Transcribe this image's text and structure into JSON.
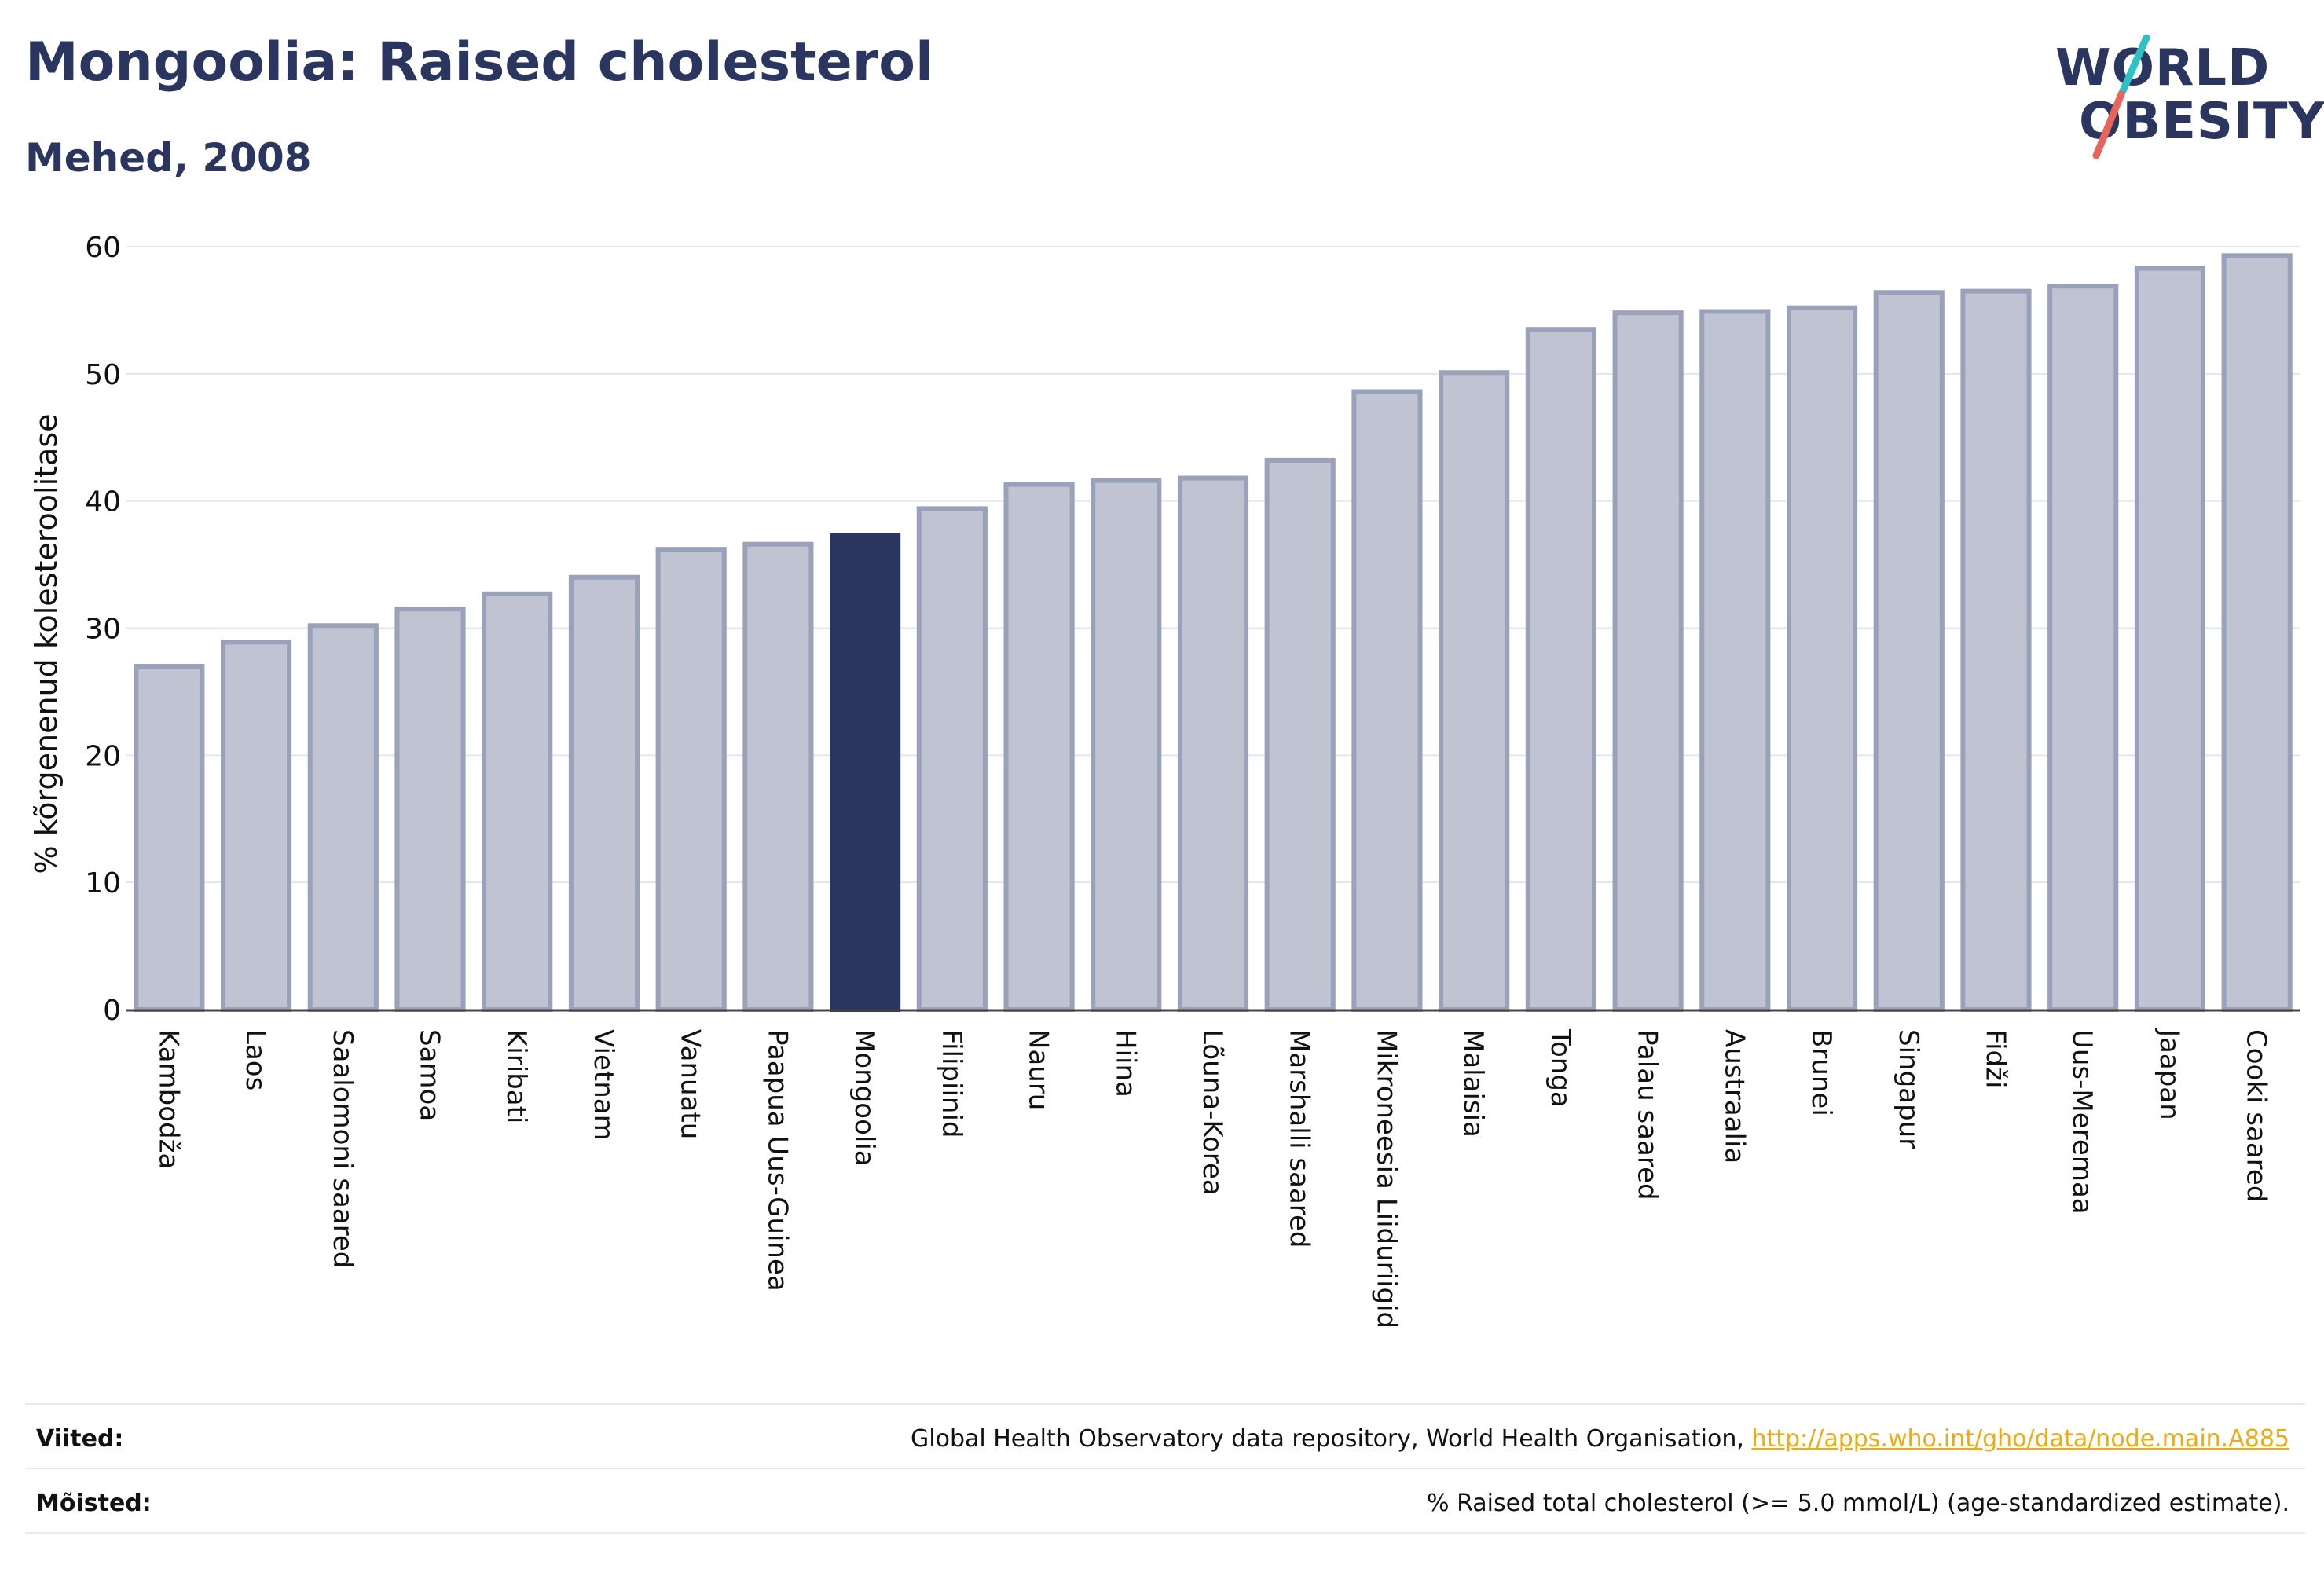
{
  "header": {
    "title": "Mongoolia: Raised cholesterol",
    "subtitle": "Mehed, 2008"
  },
  "logo": {
    "line1": "WORLD",
    "line2": "OBESITY",
    "slash_colors": [
      "#2dc2c3",
      "#e9645d"
    ]
  },
  "colors": {
    "bar_default": "#bfc3d2",
    "bar_default_border": "#9aa1ba",
    "bar_highlight": "#2b3660",
    "title": "#2b3660",
    "link": "#f0a90f"
  },
  "chart_data": {
    "type": "bar",
    "categories": [
      "Kambodža",
      "Laos",
      "Saalomoni saared",
      "Samoa",
      "Kiribati",
      "Vietnam",
      "Vanuatu",
      "Paapua Uus-Guinea",
      "Mongoolia",
      "Filipiinid",
      "Nauru",
      "Hiina",
      "Lõuna-Korea",
      "Marshalli saared",
      "Mikroneesia Liiduriigid",
      "Malaisia",
      "Tonga",
      "Palau saared",
      "Austraalia",
      "Brunei",
      "Singapur",
      "Fidži",
      "Uus-Meremaa",
      "Jaapan",
      "Cooki saared"
    ],
    "values": [
      27.0,
      28.9,
      30.2,
      31.5,
      32.7,
      34.0,
      36.2,
      36.6,
      37.3,
      39.4,
      41.3,
      41.6,
      41.8,
      43.2,
      48.6,
      50.1,
      53.5,
      54.8,
      54.9,
      55.2,
      56.4,
      56.5,
      56.9,
      58.3,
      59.3
    ],
    "highlight": "Mongoolia",
    "ylabel": "% kõrgenenud kolesteroolitase",
    "ylim": [
      0,
      60
    ],
    "yticks": [
      0,
      10,
      20,
      30,
      40,
      50,
      60
    ],
    "grid": true
  },
  "footer": {
    "sources_label": "Viited:",
    "sources_text": "Global Health Observatory data repository, World Health Organisation, ",
    "sources_link": "http://apps.who.int/gho/data/node.main.A885",
    "definitions_label": "Mõisted:",
    "definitions_text": "% Raised total cholesterol (>= 5.0 mmol/L) (age-standardized estimate)."
  }
}
